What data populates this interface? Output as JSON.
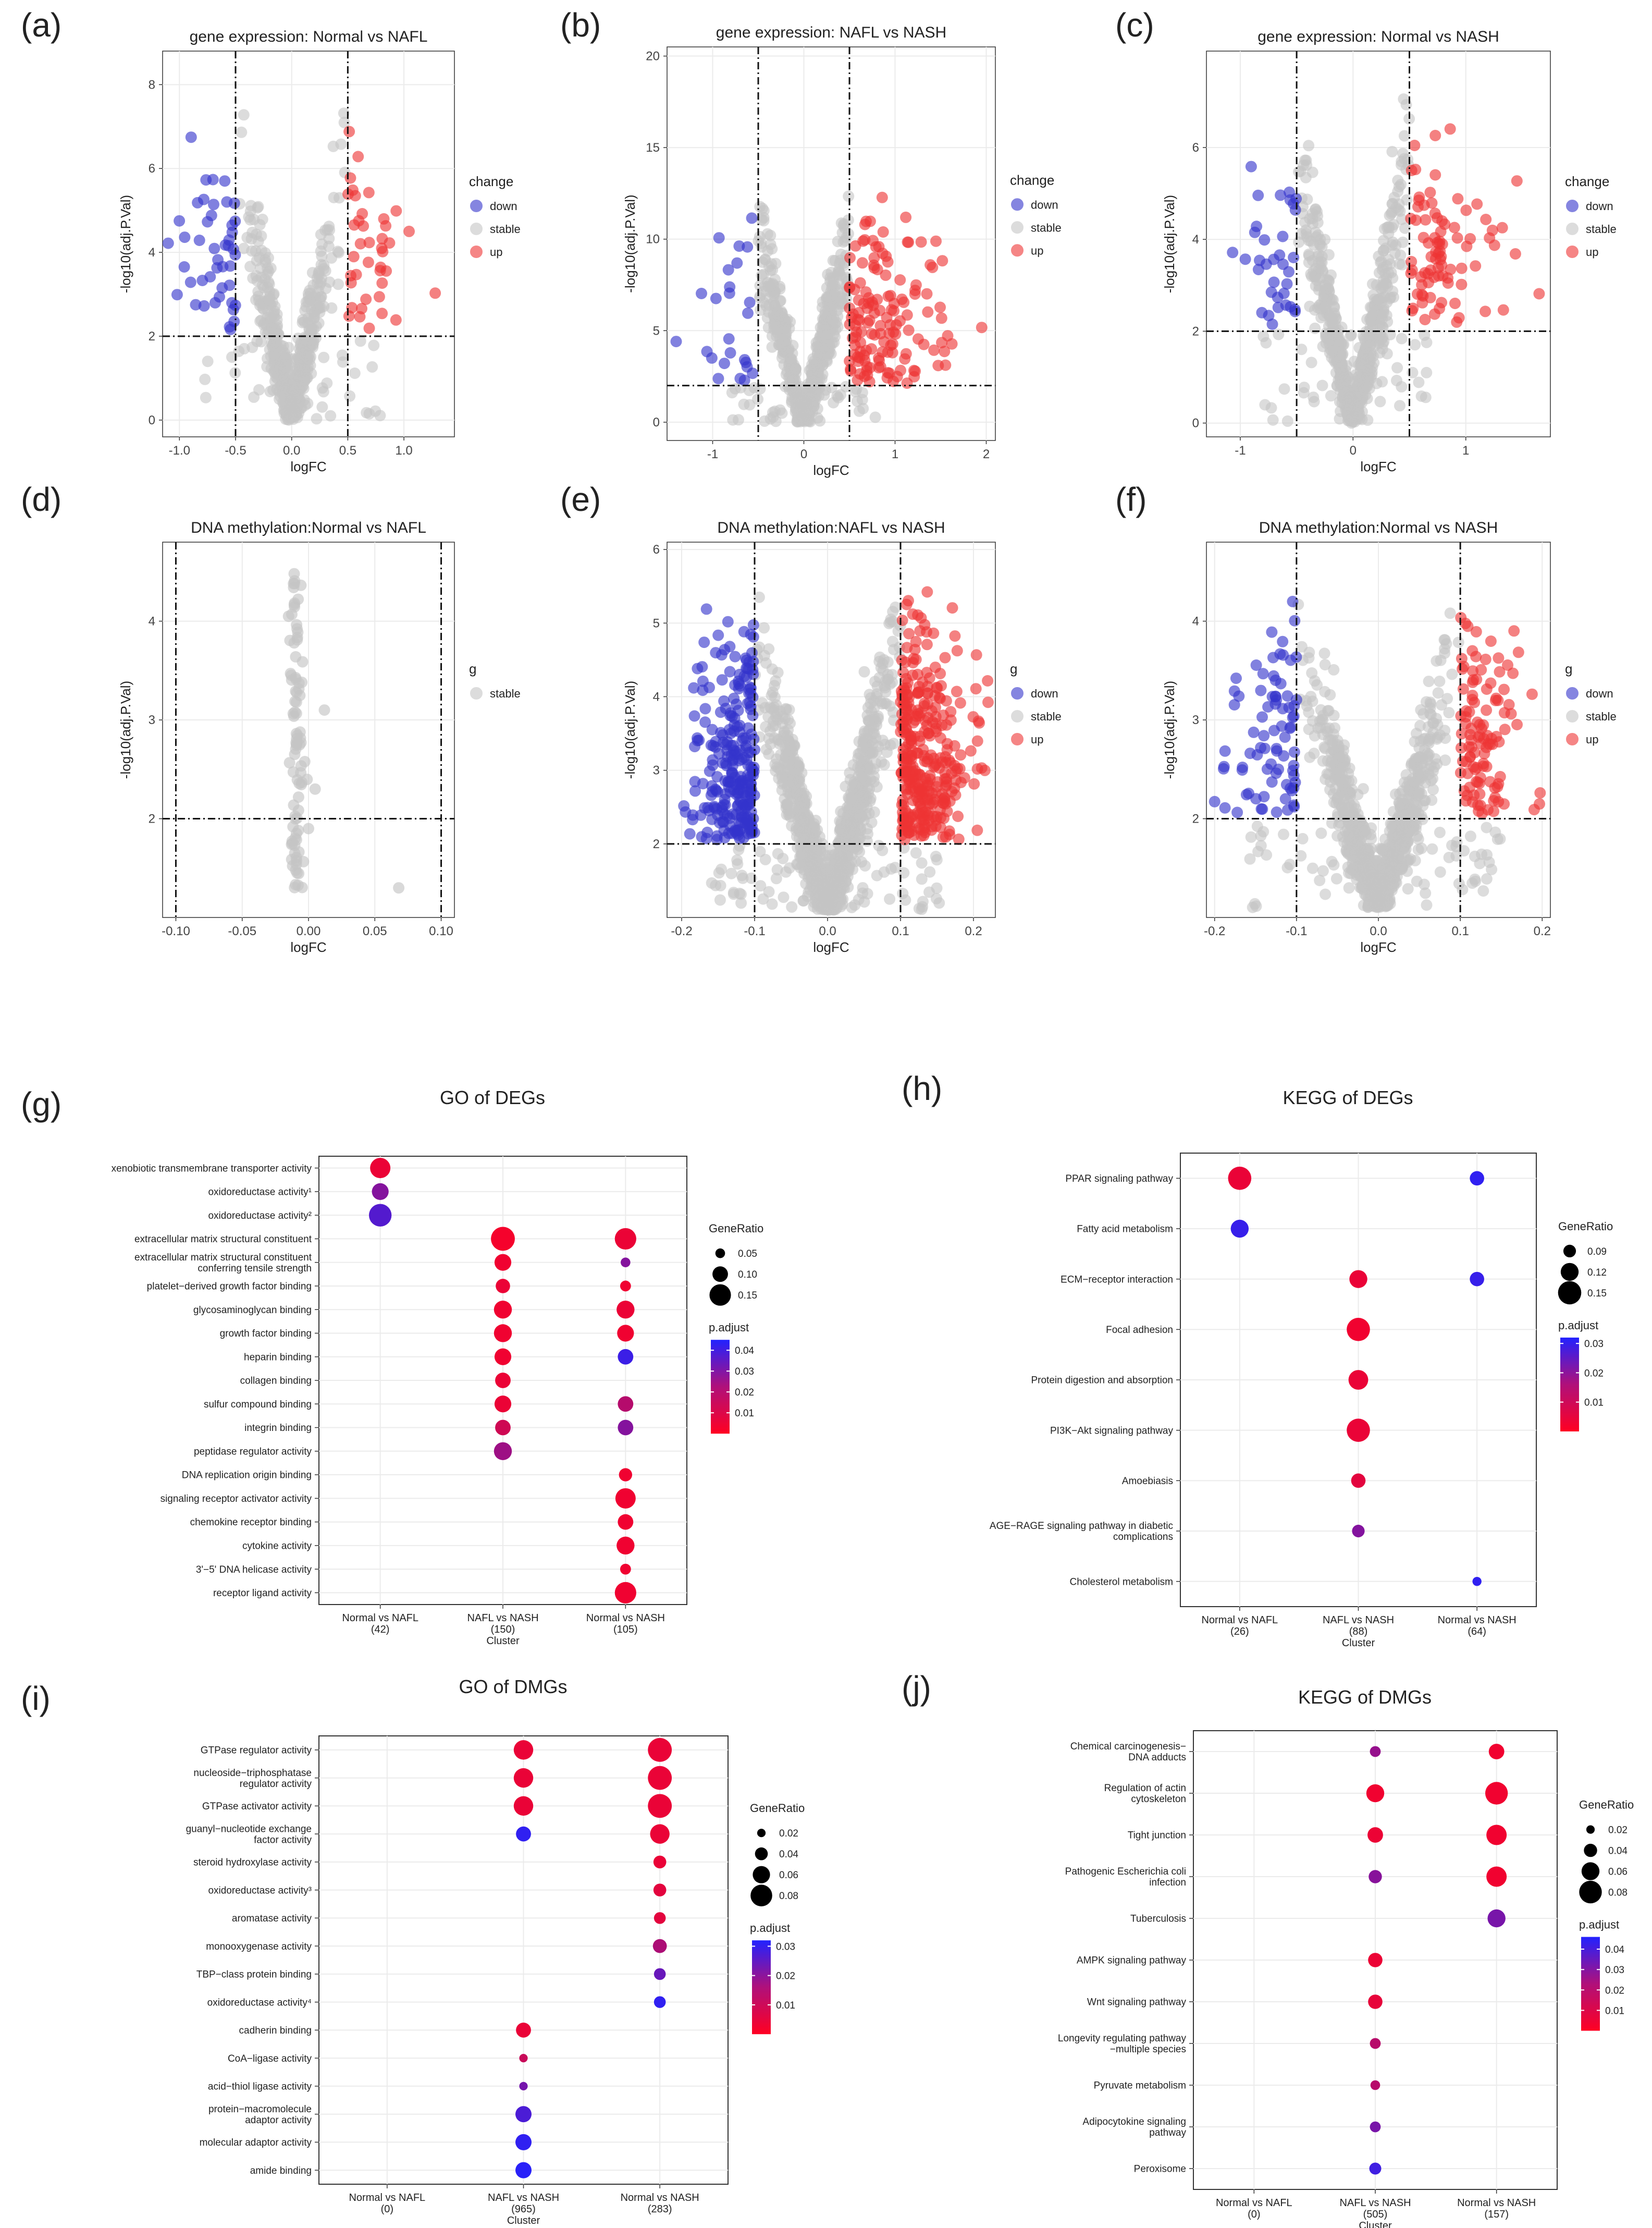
{
  "volcano_panels": [
    {
      "letter": "(a)",
      "title": "gene expression: Normal vs NAFL",
      "xlabel": "logFC",
      "ylabel": "-log10(adj.P.Val)",
      "xlim": [
        -1.15,
        1.45
      ],
      "ylim": [
        -0.4,
        8.8
      ],
      "xticks": [
        "-1.0",
        "-0.5",
        "0.0",
        "0.5",
        "1.0"
      ],
      "yticks": [
        "0",
        "2",
        "4",
        "6",
        "8"
      ],
      "xcut": [
        -0.5,
        0.5
      ],
      "ycut": 2,
      "legend_title": "change",
      "legend": [
        "down",
        "stable",
        "up"
      ]
    },
    {
      "letter": "(b)",
      "title": "gene expression: NAFL vs NASH",
      "xlabel": "logFC",
      "ylabel": "-log10(adj.P.Val)",
      "xlim": [
        -1.5,
        2.1
      ],
      "ylim": [
        -1,
        20.5
      ],
      "xticks": [
        "-1",
        "0",
        "1",
        "2"
      ],
      "yticks": [
        "0",
        "5",
        "10",
        "15",
        "20"
      ],
      "xcut": [
        -0.5,
        0.5
      ],
      "ycut": 2,
      "legend_title": "change",
      "legend": [
        "down",
        "stable",
        "up"
      ]
    },
    {
      "letter": "(c)",
      "title": "gene expression: Normal vs NASH",
      "xlabel": "logFC",
      "ylabel": "-log10(adj.P.Val)",
      "xlim": [
        -1.3,
        1.75
      ],
      "ylim": [
        -0.3,
        8.1
      ],
      "xticks": [
        "-1",
        "0",
        "1"
      ],
      "yticks": [
        "0",
        "2",
        "4",
        "6"
      ],
      "xcut": [
        -0.5,
        0.5
      ],
      "ycut": 2,
      "legend_title": "change",
      "legend": [
        "down",
        "stable",
        "up"
      ]
    },
    {
      "letter": "(d)",
      "title": "DNA methylation:Normal vs NAFL",
      "xlabel": "logFC",
      "ylabel": "-log10(adj.P.Val)",
      "xlim": [
        -0.11,
        0.11
      ],
      "ylim": [
        1.0,
        4.8
      ],
      "xticks": [
        "-0.10",
        "-0.05",
        "0.00",
        "0.05",
        "0.10"
      ],
      "yticks": [
        "2",
        "3",
        "4"
      ],
      "xcut": [
        -0.1,
        0.1
      ],
      "ycut": 2,
      "legend_title": "g",
      "legend": [
        "stable"
      ]
    },
    {
      "letter": "(e)",
      "title": "DNA methylation:NAFL vs NASH",
      "xlabel": "logFC",
      "ylabel": "-log10(adj.P.Val)",
      "xlim": [
        -0.22,
        0.23
      ],
      "ylim": [
        1.0,
        6.1
      ],
      "xticks": [
        "-0.2",
        "-0.1",
        "0.0",
        "0.1",
        "0.2"
      ],
      "yticks": [
        "2",
        "3",
        "4",
        "5",
        "6"
      ],
      "xcut": [
        -0.1,
        0.1
      ],
      "ycut": 2,
      "legend_title": "g",
      "legend": [
        "down",
        "stable",
        "up"
      ]
    },
    {
      "letter": "(f)",
      "title": "DNA methylation:Normal vs NASH",
      "xlabel": "logFC",
      "ylabel": "-log10(adj.P.Val)",
      "xlim": [
        -0.21,
        0.21
      ],
      "ylim": [
        1.0,
        4.8
      ],
      "xticks": [
        "-0.2",
        "-0.1",
        "0.0",
        "0.1",
        "0.2"
      ],
      "yticks": [
        "2",
        "3",
        "4"
      ],
      "xcut": [
        -0.1,
        0.1
      ],
      "ycut": 2,
      "legend_title": "g",
      "legend": [
        "down",
        "stable",
        "up"
      ]
    }
  ],
  "dot_panels": [
    {
      "letter": "(g)",
      "title": "GO of DEGs",
      "xlabel": "Cluster",
      "clusters": [
        "Normal vs NAFL\n(42)",
        "NAFL vs NASH\n(150)",
        "Normal vs NASH\n(105)"
      ],
      "terms": [
        "xenobiotic transmembrane transporter activity",
        "oxidoreductase activity¹",
        "oxidoreductase activity²",
        "extracellular matrix structural constituent",
        "extracellular matrix structural constituent\nconferring tensile strength",
        "platelet−derived growth factor binding",
        "glycosaminoglycan binding",
        "growth factor binding",
        "heparin binding",
        "collagen binding",
        "sulfur compound binding",
        "integrin binding",
        "peptidase regulator activity",
        "DNA replication origin binding",
        "signaling receptor activator activity",
        "chemokine receptor binding",
        "cytokine activity",
        "3'−5' DNA helicase activity",
        "receptor ligand activity"
      ],
      "points": [
        [
          0,
          0,
          0.14,
          0.004
        ],
        [
          0,
          1,
          0.11,
          0.025
        ],
        [
          0,
          2,
          0.16,
          0.035
        ],
        [
          1,
          3,
          0.17,
          0.002
        ],
        [
          2,
          3,
          0.15,
          0.004
        ],
        [
          1,
          4,
          0.11,
          0.003
        ],
        [
          2,
          4,
          0.05,
          0.025
        ],
        [
          1,
          5,
          0.09,
          0.004
        ],
        [
          2,
          5,
          0.06,
          0.003
        ],
        [
          1,
          6,
          0.12,
          0.003
        ],
        [
          2,
          6,
          0.12,
          0.004
        ],
        [
          1,
          7,
          0.12,
          0.003
        ],
        [
          2,
          7,
          0.11,
          0.003
        ],
        [
          1,
          8,
          0.11,
          0.003
        ],
        [
          2,
          8,
          0.1,
          0.04
        ],
        [
          1,
          9,
          0.1,
          0.004
        ],
        [
          1,
          10,
          0.11,
          0.004
        ],
        [
          2,
          10,
          0.1,
          0.015
        ],
        [
          1,
          11,
          0.1,
          0.01
        ],
        [
          2,
          11,
          0.1,
          0.025
        ],
        [
          1,
          12,
          0.12,
          0.02
        ],
        [
          2,
          13,
          0.08,
          0.003
        ],
        [
          2,
          14,
          0.14,
          0.003
        ],
        [
          2,
          15,
          0.1,
          0.003
        ],
        [
          2,
          16,
          0.12,
          0.003
        ],
        [
          2,
          17,
          0.06,
          0.003
        ],
        [
          2,
          18,
          0.15,
          0.003
        ]
      ],
      "size_legend": {
        "title": "GeneRatio",
        "values": [
          0.05,
          0.1,
          0.15
        ],
        "labels": [
          "0.05",
          "0.10",
          "0.15"
        ]
      },
      "color_legend": {
        "title": "p.adjust",
        "min": 0.0,
        "max": 0.045,
        "ticks": [
          0.01,
          0.02,
          0.03,
          0.04
        ],
        "labels": [
          "0.01",
          "0.02",
          "0.03",
          "0.04"
        ]
      },
      "size_range": [
        0.03,
        0.18
      ]
    },
    {
      "letter": "(h)",
      "title": "KEGG of DEGs",
      "xlabel": "Cluster",
      "clusters": [
        "Normal vs NAFL\n(26)",
        "NAFL vs NASH\n(88)",
        "Normal vs NASH\n(64)"
      ],
      "terms": [
        "PPAR signaling pathway",
        "Fatty acid metabolism",
        "ECM−receptor interaction",
        "Focal adhesion",
        "Protein digestion and absorption",
        "PI3K−Akt signaling pathway",
        "Amoebiasis",
        "AGE−RAGE signaling pathway in diabetic\ncomplications",
        "Cholesterol metabolism"
      ],
      "points": [
        [
          0,
          0,
          0.15,
          0.003
        ],
        [
          2,
          0,
          0.1,
          0.03
        ],
        [
          0,
          1,
          0.12,
          0.029
        ],
        [
          1,
          2,
          0.12,
          0.003
        ],
        [
          2,
          2,
          0.1,
          0.029
        ],
        [
          1,
          3,
          0.15,
          0.002
        ],
        [
          1,
          4,
          0.13,
          0.003
        ],
        [
          1,
          5,
          0.15,
          0.003
        ],
        [
          1,
          6,
          0.1,
          0.004
        ],
        [
          1,
          7,
          0.09,
          0.018
        ],
        [
          2,
          8,
          0.07,
          0.03
        ]
      ],
      "size_legend": {
        "title": "GeneRatio",
        "values": [
          0.09,
          0.12,
          0.15
        ],
        "labels": [
          "0.09",
          "0.12",
          "0.15"
        ]
      },
      "color_legend": {
        "title": "p.adjust",
        "min": 0.0,
        "max": 0.032,
        "ticks": [
          0.01,
          0.02,
          0.03
        ],
        "labels": [
          "0.01",
          "0.02",
          "0.03"
        ]
      },
      "size_range": [
        0.06,
        0.16
      ]
    },
    {
      "letter": "(i)",
      "title": "GO of DMGs",
      "xlabel": "Cluster",
      "clusters": [
        "Normal vs NAFL\n(0)",
        "NAFL vs NASH\n(965)",
        "Normal vs NASH\n(283)"
      ],
      "terms": [
        "GTPase regulator activity",
        "nucleoside−triphosphatase\nregulator activity",
        "GTPase activator activity",
        "guanyl−nucleotide exchange\nfactor activity",
        "steroid hydroxylase activity",
        "oxidoreductase activity³",
        "aromatase activity",
        "monooxygenase activity",
        "TBP−class protein binding",
        "oxidoreductase activity⁴",
        "cadherin binding",
        "CoA−ligase activity",
        "acid−thiol ligase activity",
        "protein−macromolecule\nadaptor activity",
        "molecular adaptor activity",
        "amide binding"
      ],
      "points": [
        [
          1,
          0,
          0.07,
          0.003
        ],
        [
          2,
          0,
          0.09,
          0.003
        ],
        [
          1,
          1,
          0.07,
          0.003
        ],
        [
          2,
          1,
          0.09,
          0.003
        ],
        [
          1,
          2,
          0.07,
          0.003
        ],
        [
          2,
          2,
          0.09,
          0.003
        ],
        [
          1,
          3,
          0.05,
          0.03
        ],
        [
          2,
          3,
          0.07,
          0.003
        ],
        [
          2,
          4,
          0.04,
          0.003
        ],
        [
          2,
          5,
          0.04,
          0.004
        ],
        [
          2,
          6,
          0.035,
          0.004
        ],
        [
          2,
          7,
          0.045,
          0.012
        ],
        [
          2,
          8,
          0.035,
          0.022
        ],
        [
          2,
          9,
          0.035,
          0.03
        ],
        [
          1,
          10,
          0.05,
          0.003
        ],
        [
          1,
          11,
          0.02,
          0.008
        ],
        [
          1,
          12,
          0.02,
          0.02
        ],
        [
          1,
          13,
          0.055,
          0.026
        ],
        [
          1,
          14,
          0.055,
          0.03
        ],
        [
          1,
          15,
          0.055,
          0.031
        ]
      ],
      "size_legend": {
        "title": "GeneRatio",
        "values": [
          0.02,
          0.04,
          0.06,
          0.08
        ],
        "labels": [
          "0.02",
          "0.04",
          "0.06",
          "0.08"
        ]
      },
      "color_legend": {
        "title": "p.adjust",
        "min": 0.0,
        "max": 0.032,
        "ticks": [
          0.01,
          0.02,
          0.03
        ],
        "labels": [
          "0.01",
          "0.02",
          "0.03"
        ]
      },
      "size_range": [
        0.015,
        0.095
      ]
    },
    {
      "letter": "(j)",
      "title": "KEGG of DMGs",
      "xlabel": "Cluster",
      "clusters": [
        "Normal vs NAFL\n(0)",
        "NAFL vs NASH\n(505)",
        "Normal vs NASH\n(157)"
      ],
      "terms": [
        "Chemical carcinogenesis−\nDNA adducts",
        "Regulation of actin\ncytoskeleton",
        "Tight junction",
        "Pathogenic Escherichia coli\ninfection",
        "Tuberculosis",
        "AMPK signaling pathway",
        "Wnt signaling pathway",
        "Longevity regulating pathway\n−multiple species",
        "Pyruvate metabolism",
        "Adipocytokine signaling\npathway",
        "Peroxisome"
      ],
      "points": [
        [
          1,
          0,
          0.03,
          0.022
        ],
        [
          2,
          0,
          0.05,
          0.003
        ],
        [
          1,
          1,
          0.06,
          0.003
        ],
        [
          2,
          1,
          0.08,
          0.003
        ],
        [
          1,
          2,
          0.05,
          0.004
        ],
        [
          2,
          2,
          0.07,
          0.003
        ],
        [
          1,
          3,
          0.04,
          0.025
        ],
        [
          2,
          3,
          0.07,
          0.003
        ],
        [
          2,
          4,
          0.06,
          0.028
        ],
        [
          1,
          5,
          0.045,
          0.004
        ],
        [
          1,
          6,
          0.045,
          0.005
        ],
        [
          1,
          7,
          0.03,
          0.015
        ],
        [
          1,
          8,
          0.025,
          0.015
        ],
        [
          1,
          9,
          0.03,
          0.028
        ],
        [
          1,
          10,
          0.035,
          0.04
        ]
      ],
      "size_legend": {
        "title": "GeneRatio",
        "values": [
          0.02,
          0.04,
          0.06,
          0.08
        ],
        "labels": [
          "0.02",
          "0.04",
          "0.06",
          "0.08"
        ]
      },
      "color_legend": {
        "title": "p.adjust",
        "min": 0.0,
        "max": 0.046,
        "ticks": [
          0.01,
          0.02,
          0.03,
          0.04
        ],
        "labels": [
          "0.01",
          "0.02",
          "0.03",
          "0.04"
        ]
      },
      "size_range": [
        0.015,
        0.09
      ]
    }
  ],
  "colors": {
    "down": "#3333cc",
    "stable": "#c4c4c4",
    "up": "#ee3333",
    "scale_low": "#ff0022",
    "scale_high": "#2222ff",
    "gridline": "#ebebeb",
    "frame": "#333333"
  },
  "chart_data": [
    {
      "type": "scatter",
      "title": "gene expression: Normal vs NAFL",
      "xlabel": "logFC",
      "ylabel": "-log10(adj.P.Val)",
      "xlim": [
        -1.15,
        1.45
      ],
      "ylim": [
        -0.4,
        8.8
      ],
      "thresholds": {
        "logFC": 0.5,
        "neglog10p": 2
      },
      "series": [
        {
          "name": "down"
        },
        {
          "name": "stable"
        },
        {
          "name": "up"
        }
      ]
    },
    {
      "type": "scatter",
      "title": "gene expression: NAFL vs NASH",
      "xlabel": "logFC",
      "ylabel": "-log10(adj.P.Val)",
      "xlim": [
        -1.5,
        2.1
      ],
      "ylim": [
        -1,
        20.5
      ],
      "thresholds": {
        "logFC": 0.5,
        "neglog10p": 2
      },
      "series": [
        {
          "name": "down"
        },
        {
          "name": "stable"
        },
        {
          "name": "up"
        }
      ]
    },
    {
      "type": "scatter",
      "title": "gene expression: Normal vs NASH",
      "xlabel": "logFC",
      "ylabel": "-log10(adj.P.Val)",
      "xlim": [
        -1.3,
        1.75
      ],
      "ylim": [
        -0.3,
        8.1
      ],
      "thresholds": {
        "logFC": 0.5,
        "neglog10p": 2
      },
      "series": [
        {
          "name": "down"
        },
        {
          "name": "stable"
        },
        {
          "name": "up"
        }
      ]
    },
    {
      "type": "scatter",
      "title": "DNA methylation:Normal vs NAFL",
      "xlabel": "logFC",
      "ylabel": "-log10(adj.P.Val)",
      "xlim": [
        -0.11,
        0.11
      ],
      "ylim": [
        1.0,
        4.8
      ],
      "thresholds": {
        "logFC": 0.1,
        "neglog10p": 2
      },
      "series": [
        {
          "name": "stable"
        }
      ]
    },
    {
      "type": "scatter",
      "title": "DNA methylation:NAFL vs NASH",
      "xlabel": "logFC",
      "ylabel": "-log10(adj.P.Val)",
      "xlim": [
        -0.22,
        0.23
      ],
      "ylim": [
        1.0,
        6.1
      ],
      "thresholds": {
        "logFC": 0.1,
        "neglog10p": 2
      },
      "series": [
        {
          "name": "down"
        },
        {
          "name": "stable"
        },
        {
          "name": "up"
        }
      ]
    },
    {
      "type": "scatter",
      "title": "DNA methylation:Normal vs NASH",
      "xlabel": "logFC",
      "ylabel": "-log10(adj.P.Val)",
      "xlim": [
        -0.21,
        0.21
      ],
      "ylim": [
        1.0,
        4.8
      ],
      "thresholds": {
        "logFC": 0.1,
        "neglog10p": 2
      },
      "series": [
        {
          "name": "down"
        },
        {
          "name": "stable"
        },
        {
          "name": "up"
        }
      ]
    },
    {
      "type": "dot",
      "title": "GO of DEGs",
      "size": "GeneRatio",
      "color": "p.adjust"
    },
    {
      "type": "dot",
      "title": "KEGG of DEGs",
      "size": "GeneRatio",
      "color": "p.adjust"
    },
    {
      "type": "dot",
      "title": "GO of DMGs",
      "size": "GeneRatio",
      "color": "p.adjust"
    },
    {
      "type": "dot",
      "title": "KEGG of DMGs",
      "size": "GeneRatio",
      "color": "p.adjust"
    }
  ]
}
